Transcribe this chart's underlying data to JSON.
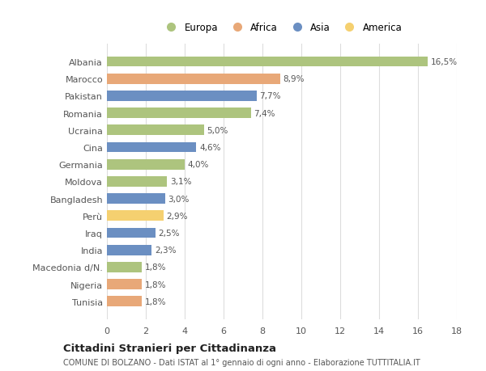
{
  "categories": [
    "Tunisia",
    "Nigeria",
    "Macedonia d/N.",
    "India",
    "Iraq",
    "Perù",
    "Bangladesh",
    "Moldova",
    "Germania",
    "Cina",
    "Ucraina",
    "Romania",
    "Pakistan",
    "Marocco",
    "Albania"
  ],
  "values": [
    1.8,
    1.8,
    1.8,
    2.3,
    2.5,
    2.9,
    3.0,
    3.1,
    4.0,
    4.6,
    5.0,
    7.4,
    7.7,
    8.9,
    16.5
  ],
  "labels": [
    "1,8%",
    "1,8%",
    "1,8%",
    "2,3%",
    "2,5%",
    "2,9%",
    "3,0%",
    "3,1%",
    "4,0%",
    "4,6%",
    "5,0%",
    "7,4%",
    "7,7%",
    "8,9%",
    "16,5%"
  ],
  "continents": [
    "Africa",
    "Africa",
    "Europa",
    "Asia",
    "Asia",
    "America",
    "Asia",
    "Europa",
    "Europa",
    "Asia",
    "Europa",
    "Europa",
    "Asia",
    "Africa",
    "Europa"
  ],
  "colors": {
    "Europa": "#adc47e",
    "Africa": "#e8a878",
    "Asia": "#6b8fc2",
    "America": "#f5d070"
  },
  "legend_labels": [
    "Europa",
    "Africa",
    "Asia",
    "America"
  ],
  "title": "Cittadini Stranieri per Cittadinanza",
  "subtitle": "COMUNE DI BOLZANO - Dati ISTAT al 1° gennaio di ogni anno - Elaborazione TUTTITALIA.IT",
  "xlim": [
    0,
    18
  ],
  "xticks": [
    0,
    2,
    4,
    6,
    8,
    10,
    12,
    14,
    16,
    18
  ],
  "bg_color": "#ffffff",
  "grid_color": "#dddddd"
}
